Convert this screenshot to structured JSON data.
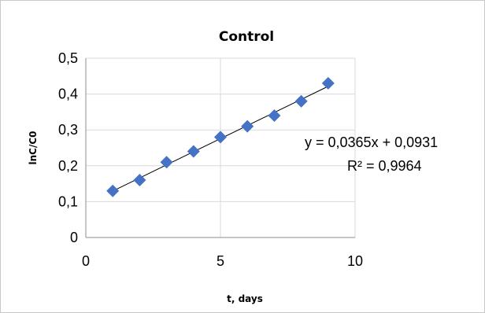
{
  "chart_data": {
    "type": "scatter",
    "title": "Control",
    "xlabel": "t, days",
    "ylabel": "lnC/C0",
    "xlim": [
      0,
      10
    ],
    "ylim": [
      0,
      0.5
    ],
    "x_ticks": [
      {
        "value": 0,
        "label": "0"
      },
      {
        "value": 5,
        "label": "5"
      },
      {
        "value": 10,
        "label": "10"
      }
    ],
    "y_ticks": [
      {
        "value": 0,
        "label": "0"
      },
      {
        "value": 0.1,
        "label": "0,1"
      },
      {
        "value": 0.2,
        "label": "0,2"
      },
      {
        "value": 0.3,
        "label": "0,3"
      },
      {
        "value": 0.4,
        "label": "0,4"
      },
      {
        "value": 0.5,
        "label": "0,5"
      }
    ],
    "grid": true,
    "legend": "none",
    "marker_color": "#4472c4",
    "series": [
      {
        "x": [
          1,
          2,
          3,
          4,
          5,
          6,
          7,
          8,
          9
        ],
        "y": [
          0.13,
          0.16,
          0.21,
          0.24,
          0.28,
          0.31,
          0.34,
          0.38,
          0.43
        ]
      }
    ],
    "trendline": {
      "slope": 0.0365,
      "intercept": 0.0931,
      "equation": "y = 0,0365x + 0,0931",
      "r_squared": "R² = 0,9964"
    }
  }
}
